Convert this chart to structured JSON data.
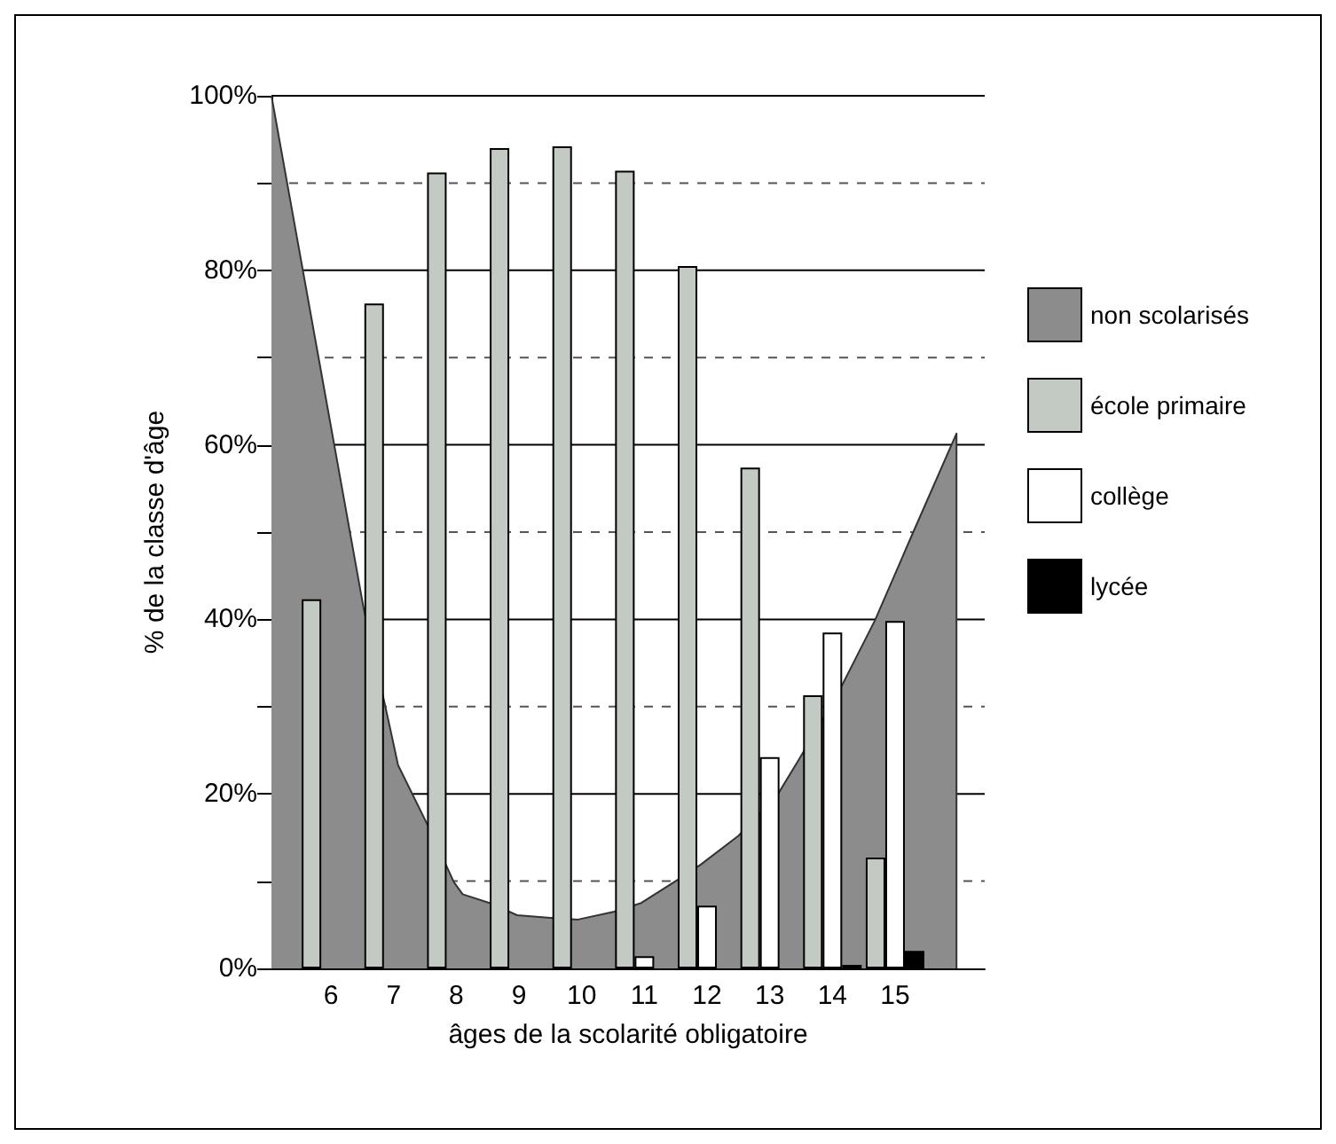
{
  "chart_data": {
    "type": "bar",
    "xlabel": "âges de la scolarité obligatoire",
    "ylabel": "% de la classe d'âge",
    "x": [
      6,
      7,
      8,
      9,
      10,
      11,
      12,
      13,
      14,
      15
    ],
    "xlim": [
      5.05,
      16.43
    ],
    "xticks": [
      6,
      7,
      8,
      9,
      10,
      11,
      12,
      13,
      14,
      15
    ],
    "ylim": [
      0,
      100
    ],
    "yticks": [
      {
        "value": 0,
        "label": "0%"
      },
      {
        "value": 10,
        "label": null
      },
      {
        "value": 20,
        "label": "20%"
      },
      {
        "value": 30,
        "label": null
      },
      {
        "value": 40,
        "label": "40%"
      },
      {
        "value": 50,
        "label": null
      },
      {
        "value": 60,
        "label": "60%"
      },
      {
        "value": 70,
        "label": null
      },
      {
        "value": 80,
        "label": "80%"
      },
      {
        "value": 90,
        "label": null
      },
      {
        "value": 100,
        "label": "100%"
      }
    ],
    "grid": true,
    "legend": "right",
    "series": [
      {
        "name": "non scolarisés",
        "type": "area",
        "color": "#8c8c8c",
        "x": [
          5.05,
          6.52,
          6.95,
          7.07,
          7.53,
          7.96,
          8.1,
          8.53,
          8.97,
          9.5,
          9.94,
          10.52,
          10.95,
          11.52,
          11.9,
          12.5,
          13.1,
          13.48,
          14.08,
          14.68,
          15.29,
          15.98,
          15.98
        ],
        "values": [
          100,
          41.3,
          27.3,
          23.3,
          16.6,
          9.9,
          8.5,
          7.5,
          6.1,
          5.8,
          5.6,
          6.5,
          7.5,
          10.1,
          11.9,
          15.2,
          19.6,
          24.1,
          31.4,
          39.9,
          50,
          61.3,
          0
        ]
      },
      {
        "name": "école primaire",
        "color": "#c3c9c3",
        "values": [
          42.3,
          76.2,
          91.2,
          94,
          94.2,
          91.4,
          80.5,
          57.4,
          31.3,
          12.7
        ]
      },
      {
        "name": "collège",
        "color": "#ffffff",
        "values": [
          null,
          null,
          null,
          null,
          null,
          1.4,
          7.2,
          24.2,
          38.5,
          39.8
        ]
      },
      {
        "name": "lycée",
        "color": "#000000",
        "values": [
          null,
          null,
          null,
          null,
          null,
          null,
          null,
          null,
          0.4,
          2.0
        ]
      }
    ]
  }
}
